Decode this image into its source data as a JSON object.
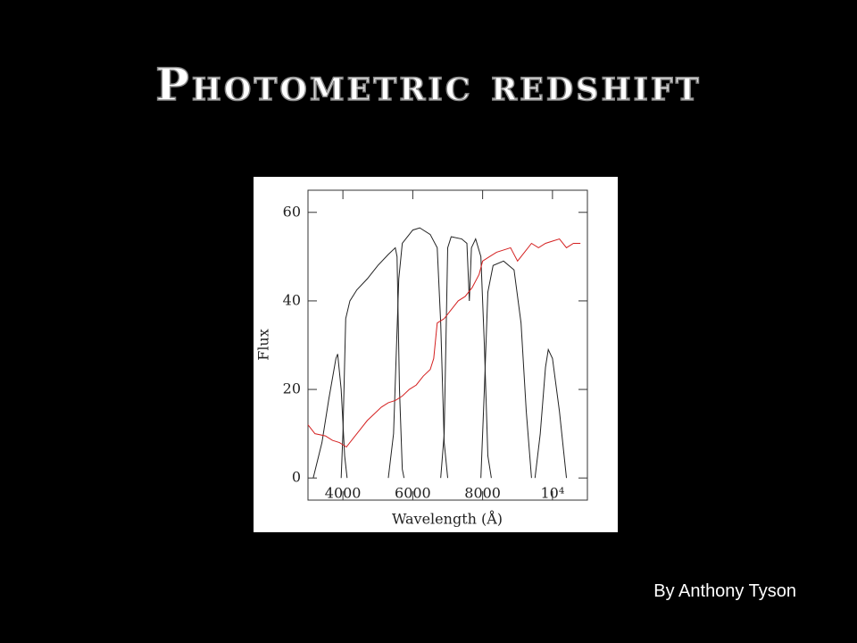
{
  "title": "Photometric redshift",
  "author": "By Anthony Tyson",
  "chart_data": {
    "type": "line",
    "xlabel": "Wavelength (Å)",
    "ylabel": "Flux",
    "xlim": [
      3000,
      11000
    ],
    "ylim": [
      -5,
      65
    ],
    "xticks": [
      4000,
      6000,
      8000,
      {
        "value": 10000,
        "label": "10⁴"
      }
    ],
    "yticks": [
      0,
      20,
      40,
      60
    ],
    "series": [
      {
        "color": "#222222",
        "x": [
          3150,
          3400,
          3600,
          3800,
          3850,
          3950,
          4050,
          4120
        ],
        "values": [
          0,
          8,
          18,
          27,
          28,
          20,
          5,
          0
        ]
      },
      {
        "color": "#222222",
        "x": [
          3950,
          4000,
          4080,
          4200,
          4400,
          4700,
          5000,
          5300,
          5500,
          5550,
          5620,
          5700,
          5750
        ],
        "values": [
          0,
          10,
          36,
          40,
          42.5,
          45,
          48,
          50.5,
          52,
          50,
          20,
          2,
          0
        ]
      },
      {
        "color": "#222222",
        "x": [
          5300,
          5450,
          5600,
          5700,
          6000,
          6200,
          6500,
          6700,
          6800,
          6900,
          7000
        ],
        "values": [
          0,
          10,
          45,
          53,
          56,
          56.5,
          55,
          52,
          35,
          8,
          0
        ]
      },
      {
        "color": "#222222",
        "x": [
          6800,
          6900,
          7000,
          7100,
          7400,
          7550,
          7620,
          7680,
          7800,
          7950,
          8050,
          8150,
          8250
        ],
        "values": [
          0,
          10,
          52,
          54.5,
          54,
          53,
          40,
          52,
          54,
          50,
          30,
          5,
          0
        ]
      },
      {
        "color": "#222222",
        "x": [
          7950,
          8050,
          8150,
          8300,
          8600,
          8900,
          9100,
          9250,
          9400
        ],
        "values": [
          0,
          20,
          42,
          48,
          49,
          47,
          35,
          15,
          0
        ]
      },
      {
        "color": "#222222",
        "x": [
          9500,
          9650,
          9800,
          9880,
          10000,
          10200,
          10400
        ],
        "values": [
          0,
          10,
          25,
          29,
          27,
          15,
          0
        ]
      },
      {
        "color": "#d42020",
        "x": [
          3000,
          3200,
          3500,
          3700,
          3900,
          4100,
          4300,
          4500,
          4700,
          4900,
          5100,
          5300,
          5500,
          5700,
          5900,
          6100,
          6300,
          6500,
          6600,
          6700,
          6900,
          7100,
          7300,
          7500,
          7700,
          7900,
          8000,
          8200,
          8400,
          8600,
          8800,
          9000,
          9200,
          9400,
          9600,
          9800,
          10000,
          10200,
          10400,
          10600,
          10800
        ],
        "values": [
          12,
          10,
          9.5,
          8.5,
          8,
          7,
          9,
          11,
          13,
          14.5,
          16,
          17,
          17.5,
          18.5,
          20,
          21,
          23,
          24.5,
          27,
          35,
          36,
          38,
          40,
          41,
          43,
          46,
          49,
          50,
          51,
          51.5,
          52,
          49,
          51,
          53,
          52,
          53,
          53.5,
          54,
          52,
          53,
          53
        ]
      }
    ]
  }
}
